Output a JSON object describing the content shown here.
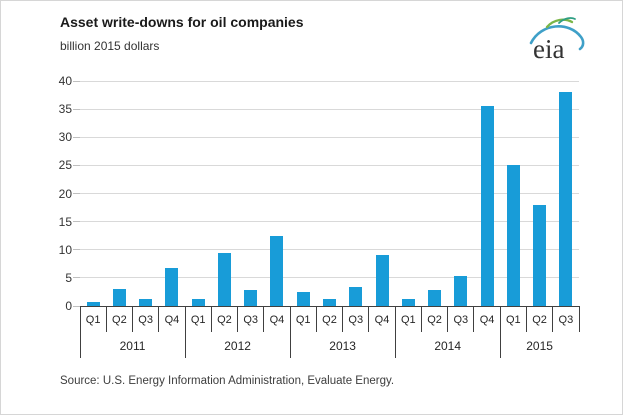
{
  "header": {
    "title": "Asset write-downs for oil companies",
    "subtitle": "billion 2015 dollars",
    "logo_text": "eia"
  },
  "chart_data": {
    "type": "bar",
    "title": "Asset write-downs for oil companies",
    "ylabel": "billion 2015 dollars",
    "ylim": [
      0,
      40
    ],
    "yticks": [
      0,
      5,
      10,
      15,
      20,
      25,
      30,
      35,
      40
    ],
    "grid": true,
    "legend": "none",
    "bar_color": "#189cd8",
    "categories": [
      "Q1",
      "Q2",
      "Q3",
      "Q4",
      "Q1",
      "Q2",
      "Q3",
      "Q4",
      "Q1",
      "Q2",
      "Q3",
      "Q4",
      "Q1",
      "Q2",
      "Q3",
      "Q4",
      "Q1",
      "Q2",
      "Q3"
    ],
    "year_groups": [
      {
        "label": "2011",
        "span": 4
      },
      {
        "label": "2012",
        "span": 4
      },
      {
        "label": "2013",
        "span": 4
      },
      {
        "label": "2014",
        "span": 4
      },
      {
        "label": "2015",
        "span": 3
      }
    ],
    "values": [
      0.7,
      3.0,
      1.2,
      6.8,
      1.3,
      9.4,
      2.8,
      12.5,
      2.5,
      1.3,
      3.4,
      9.0,
      1.3,
      2.9,
      5.3,
      35.5,
      25.1,
      18.0,
      38.0
    ]
  },
  "footer": {
    "source": "Source:  U.S. Energy Information Administration, Evaluate Energy."
  },
  "colors": {
    "bar": "#189cd8",
    "gridline": "#d9d9d9",
    "axis": "#404040",
    "logo_blue": "#3fa0c8",
    "logo_green": "#7ab648"
  }
}
